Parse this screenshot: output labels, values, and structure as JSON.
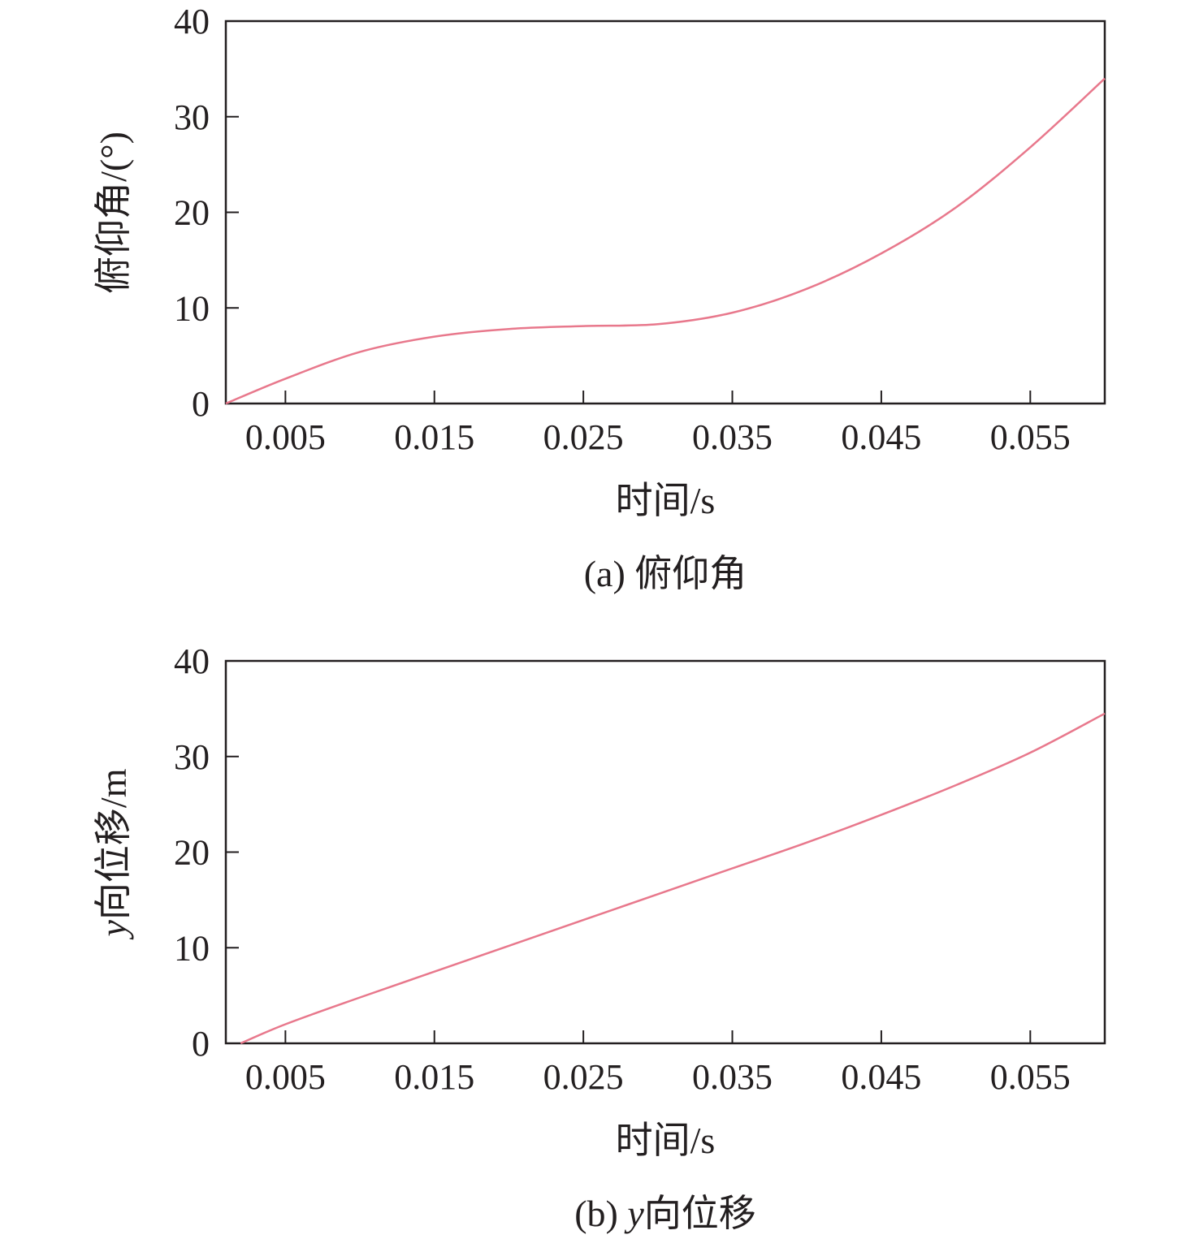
{
  "chart_data": [
    {
      "type": "line",
      "panel": "a",
      "caption_prefix": "(a)",
      "caption_text": "俯仰角",
      "xlabel": "时间/s",
      "ylabel": "俯仰角/(°)",
      "xlim": [
        0.001,
        0.06
      ],
      "ylim": [
        0,
        40
      ],
      "x_ticks": [
        0.005,
        0.015,
        0.025,
        0.035,
        0.045,
        0.055
      ],
      "x_tick_labels": [
        "0.005",
        "0.015",
        "0.025",
        "0.035",
        "0.045",
        "0.055"
      ],
      "y_ticks": [
        0,
        10,
        20,
        30,
        40
      ],
      "y_tick_labels": [
        "0",
        "10",
        "20",
        "30",
        "40"
      ],
      "grid": false,
      "line_color": "#e8788c",
      "series": [
        {
          "x": [
            0.001,
            0.005,
            0.01,
            0.015,
            0.02,
            0.025,
            0.03,
            0.035,
            0.04,
            0.045,
            0.05,
            0.055,
            0.06
          ],
          "y": [
            0,
            2.6,
            5.4,
            7.0,
            7.8,
            8.1,
            8.3,
            9.5,
            12.0,
            15.7,
            20.5,
            26.8,
            34.0
          ]
        }
      ]
    },
    {
      "type": "line",
      "panel": "b",
      "caption_prefix": "(b)",
      "caption_var": "y",
      "caption_text": "向位移",
      "xlabel": "时间/s",
      "ylabel_var": "y",
      "ylabel": "向位移/m",
      "xlim": [
        0.001,
        0.06
      ],
      "ylim": [
        0,
        40
      ],
      "x_ticks": [
        0.005,
        0.015,
        0.025,
        0.035,
        0.045,
        0.055
      ],
      "x_tick_labels": [
        "0.005",
        "0.015",
        "0.025",
        "0.035",
        "0.045",
        "0.055"
      ],
      "y_ticks": [
        0,
        10,
        20,
        30,
        40
      ],
      "y_tick_labels": [
        "0",
        "10",
        "20",
        "30",
        "40"
      ],
      "grid": false,
      "line_color": "#e8788c",
      "series": [
        {
          "x": [
            0.002,
            0.005,
            0.01,
            0.015,
            0.02,
            0.025,
            0.03,
            0.035,
            0.04,
            0.045,
            0.05,
            0.055,
            0.06
          ],
          "y": [
            0,
            2.0,
            4.8,
            7.5,
            10.2,
            12.9,
            15.6,
            18.3,
            21.0,
            23.9,
            27.0,
            30.4,
            34.5
          ]
        }
      ]
    }
  ]
}
